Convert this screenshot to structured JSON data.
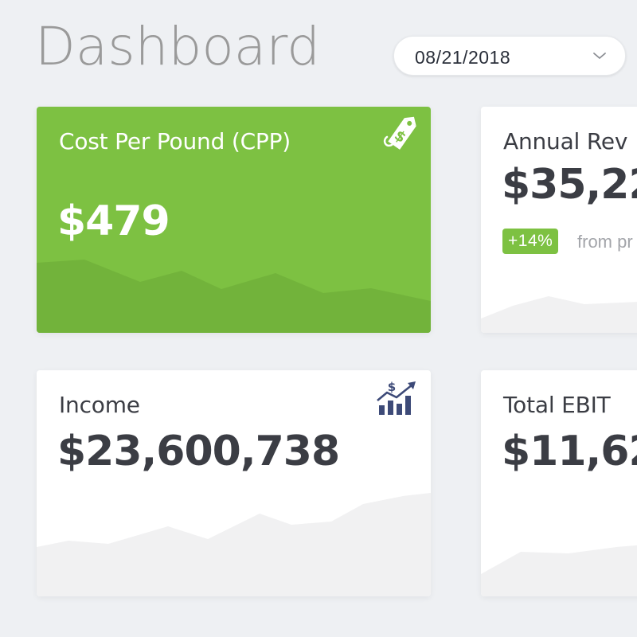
{
  "header": {
    "title": "Dashboard",
    "date_picker": {
      "value": "08/21/2018",
      "icon": "chevron-down-icon"
    }
  },
  "cards": {
    "cpp": {
      "title": "Cost Per Pound (CPP)",
      "value": "$479",
      "icon": "price-tag-dollar-icon",
      "color": "#7dc142"
    },
    "annual_revenue": {
      "title": "Annual Rev",
      "value": "$35,22",
      "badge": "+14%",
      "badge_note": "from pr",
      "badge_color": "#7dc142"
    },
    "income": {
      "title": "Income",
      "value": "$23,600,738",
      "icon": "rising-bars-dollar-icon"
    },
    "total_ebit": {
      "title": "Total EBIT",
      "value": "$11,62"
    }
  },
  "colors": {
    "background": "#eef0f3",
    "card": "#ffffff",
    "text_dark": "#3b3d44",
    "title_gray": "#9a9a9a",
    "accent_green": "#7dc142",
    "icon_navy": "#3d4a78"
  }
}
